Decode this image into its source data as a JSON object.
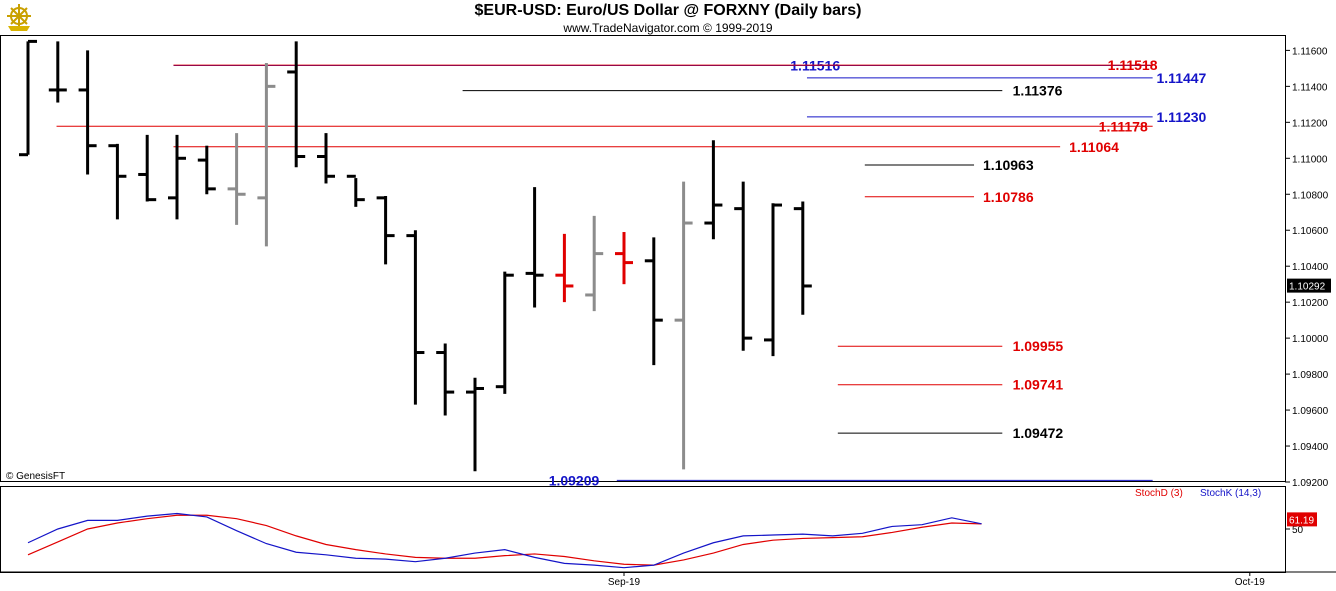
{
  "header": {
    "title": "$EUR-USD:  Euro/US Dollar @ FORXNY  (Daily bars)",
    "subtitle": "www.TradeNavigator.com © 1999-2019",
    "logo_icon": "ship-wheel-icon"
  },
  "copyright": "© GenesisFT",
  "colors": {
    "black": "#000000",
    "gray": "#8c8c8c",
    "red": "#e00000",
    "blue": "#1414c8",
    "grid": "#cfcfcf"
  },
  "chart_data": [
    {
      "type": "ohlc",
      "ylim": [
        1.092,
        1.1168
      ],
      "y_ticks": [
        "1.11600",
        "1.11400",
        "1.11200",
        "1.11000",
        "1.10800",
        "1.10600",
        "1.10400",
        "1.10200",
        "1.10000",
        "1.09800",
        "1.09600",
        "1.09400",
        "1.09200"
      ],
      "last_price": "1.10292",
      "x_labels": [
        {
          "label": "Sep-19",
          "bar_index": 20
        },
        {
          "label": "Oct-19",
          "bar_index": 41
        }
      ],
      "bars": [
        {
          "h": 1.1165,
          "l": 1.1102,
          "o": 1.1102,
          "c": 1.1165,
          "color": "black"
        },
        {
          "h": 1.1165,
          "l": 1.1131,
          "o": 1.1138,
          "c": 1.1138,
          "color": "black"
        },
        {
          "h": 1.116,
          "l": 1.1091,
          "o": 1.1138,
          "c": 1.1107,
          "color": "black"
        },
        {
          "h": 1.1108,
          "l": 1.1066,
          "o": 1.1107,
          "c": 1.109,
          "color": "black"
        },
        {
          "h": 1.1113,
          "l": 1.1076,
          "o": 1.1091,
          "c": 1.1077,
          "color": "black"
        },
        {
          "h": 1.1113,
          "l": 1.1066,
          "o": 1.1078,
          "c": 1.11,
          "color": "black"
        },
        {
          "h": 1.1107,
          "l": 1.108,
          "o": 1.1099,
          "c": 1.1083,
          "color": "black"
        },
        {
          "h": 1.1114,
          "l": 1.1063,
          "o": 1.1083,
          "c": 1.108,
          "color": "gray"
        },
        {
          "h": 1.1153,
          "l": 1.1051,
          "o": 1.1078,
          "c": 1.114,
          "color": "gray"
        },
        {
          "h": 1.1165,
          "l": 1.1095,
          "o": 1.1148,
          "c": 1.1101,
          "color": "black"
        },
        {
          "h": 1.1114,
          "l": 1.1086,
          "o": 1.1101,
          "c": 1.109,
          "color": "black"
        },
        {
          "h": 1.1089,
          "l": 1.1073,
          "o": 1.109,
          "c": 1.1077,
          "color": "black"
        },
        {
          "h": 1.1079,
          "l": 1.1041,
          "o": 1.1078,
          "c": 1.1057,
          "color": "black"
        },
        {
          "h": 1.106,
          "l": 1.0963,
          "o": 1.1057,
          "c": 1.0992,
          "color": "black"
        },
        {
          "h": 1.0997,
          "l": 1.0957,
          "o": 1.0992,
          "c": 1.097,
          "color": "black"
        },
        {
          "h": 1.0978,
          "l": 1.0926,
          "o": 1.097,
          "c": 1.0972,
          "color": "black"
        },
        {
          "h": 1.1037,
          "l": 1.0969,
          "o": 1.0973,
          "c": 1.1035,
          "color": "black"
        },
        {
          "h": 1.1084,
          "l": 1.1017,
          "o": 1.1036,
          "c": 1.1035,
          "color": "black"
        },
        {
          "h": 1.1058,
          "l": 1.102,
          "o": 1.1035,
          "c": 1.1029,
          "color": "red"
        },
        {
          "h": 1.1068,
          "l": 1.1015,
          "o": 1.1024,
          "c": 1.1047,
          "color": "gray"
        },
        {
          "h": 1.1059,
          "l": 1.103,
          "o": 1.1047,
          "c": 1.1042,
          "color": "red"
        },
        {
          "h": 1.1056,
          "l": 1.0985,
          "o": 1.1043,
          "c": 1.101,
          "color": "black"
        },
        {
          "h": 1.1087,
          "l": 1.0927,
          "o": 1.101,
          "c": 1.1064,
          "color": "gray"
        },
        {
          "h": 1.111,
          "l": 1.1055,
          "o": 1.1064,
          "c": 1.1074,
          "color": "black"
        },
        {
          "h": 1.1087,
          "l": 1.0993,
          "o": 1.1072,
          "c": 1.1,
          "color": "black"
        },
        {
          "h": 1.1075,
          "l": 1.099,
          "o": 1.0999,
          "c": 1.1074,
          "color": "black"
        },
        {
          "h": 1.1076,
          "l": 1.1013,
          "o": 1.1072,
          "c": 1.1029,
          "color": "black"
        }
      ],
      "levels": [
        {
          "value": 1.11516,
          "label": "1.11516",
          "color": "blue",
          "from": 0.135,
          "to": 0.897,
          "label_at": 0.615
        },
        {
          "value": 1.11518,
          "label": "1.11518",
          "color": "red",
          "from": 0.135,
          "to": 0.897,
          "label_at": 0.862
        },
        {
          "value": 1.11447,
          "label": "1.11447",
          "color": "blue",
          "from": 0.628,
          "to": 0.897,
          "label_at": 0.9
        },
        {
          "value": 1.11376,
          "label": "1.11376",
          "color": "black",
          "from": 0.36,
          "to": 0.78,
          "label_at": 0.788
        },
        {
          "value": 1.1123,
          "label": "1.11230",
          "color": "blue",
          "from": 0.628,
          "to": 0.897,
          "label_at": 0.9
        },
        {
          "value": 1.11178,
          "label": "1.11178",
          "color": "red",
          "from": 0.044,
          "to": 0.897,
          "label_at": 0.855
        },
        {
          "value": 1.11064,
          "label": "1.11064",
          "color": "red",
          "from": 0.135,
          "to": 0.825,
          "label_at": 0.832
        },
        {
          "value": 1.10963,
          "label": "1.10963",
          "color": "black",
          "from": 0.673,
          "to": 0.758,
          "label_at": 0.765
        },
        {
          "value": 1.10786,
          "label": "1.10786",
          "color": "red",
          "from": 0.673,
          "to": 0.758,
          "label_at": 0.765
        },
        {
          "value": 1.09955,
          "label": "1.09955",
          "color": "red",
          "from": 0.652,
          "to": 0.78,
          "label_at": 0.788
        },
        {
          "value": 1.09741,
          "label": "1.09741",
          "color": "red",
          "from": 0.652,
          "to": 0.78,
          "label_at": 0.788
        },
        {
          "value": 1.09472,
          "label": "1.09472",
          "color": "black",
          "from": 0.652,
          "to": 0.78,
          "label_at": 0.788
        },
        {
          "value": 1.09209,
          "label": "1.09209",
          "color": "blue",
          "from": 0.48,
          "to": 0.897,
          "label_at": 0.427
        }
      ]
    },
    {
      "type": "line",
      "ylim": [
        0,
        100
      ],
      "y_ticks": [
        "50"
      ],
      "last_value": "61.19",
      "series": [
        {
          "name": "StochD (3)",
          "color": "red",
          "values": [
            20,
            35,
            50,
            57,
            62,
            66,
            66,
            62,
            54,
            42,
            32,
            26,
            21,
            17,
            16,
            16,
            19,
            21,
            18,
            13,
            9,
            8,
            14,
            22,
            32,
            37,
            39,
            40,
            41,
            46,
            52,
            57,
            56
          ]
        },
        {
          "name": "StochK (14,3)",
          "color": "blue",
          "values": [
            34,
            50,
            60,
            60,
            65,
            68,
            64,
            48,
            33,
            23,
            20,
            16,
            15,
            12,
            16,
            22,
            26,
            17,
            10,
            8,
            5,
            8,
            22,
            34,
            42,
            43,
            44,
            42,
            45,
            53,
            55,
            63,
            56
          ]
        }
      ]
    }
  ]
}
